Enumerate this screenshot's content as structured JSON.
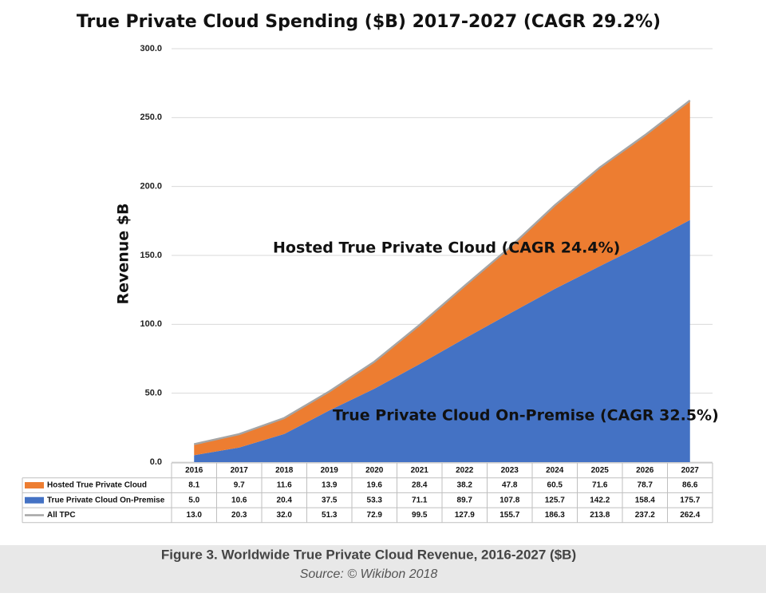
{
  "chart_data": {
    "type": "stacked_area",
    "title": "True Private Cloud Spending ($B) 2017-2027 (CAGR 29.2%)",
    "y_label": "Revenue $B",
    "annotations": [
      "Hosted True Private Cloud (CAGR 24.4%)",
      "True Private Cloud On-Premise (CAGR 32.5%)"
    ],
    "categories": [
      "2016",
      "2017",
      "2018",
      "2019",
      "2020",
      "2021",
      "2022",
      "2023",
      "2024",
      "2025",
      "2026",
      "2027"
    ],
    "series": [
      {
        "name": "Hosted True Private Cloud",
        "color": "#ed7d31",
        "stack": true,
        "values": [
          8.1,
          9.7,
          11.6,
          13.9,
          19.6,
          28.4,
          38.2,
          47.8,
          60.5,
          71.6,
          78.7,
          86.6
        ],
        "value_labels": [
          "8.1",
          "9.7",
          "11.6",
          "13.9",
          "19.6",
          "28.4",
          "38.2",
          "47.8",
          "60.5",
          "71.6",
          "78.7",
          "86.6"
        ]
      },
      {
        "name": "True Private Cloud On-Premise",
        "color": "#4472c4",
        "stack": true,
        "values": [
          5.0,
          10.6,
          20.4,
          37.5,
          53.3,
          71.1,
          89.7,
          107.8,
          125.7,
          142.2,
          158.4,
          175.7
        ],
        "value_labels": [
          "5.0",
          "10.6",
          "20.4",
          "37.5",
          "53.3",
          "71.1",
          "89.7",
          "107.8",
          "125.7",
          "142.2",
          "158.4",
          "175.7"
        ]
      },
      {
        "name": "All TPC",
        "color": "#a5a5a5",
        "stack": false,
        "values": [
          13.0,
          20.3,
          32.0,
          51.3,
          72.9,
          99.5,
          127.9,
          155.7,
          186.3,
          213.8,
          237.2,
          262.4
        ],
        "value_labels": [
          "13.0",
          "20.3",
          "32.0",
          "51.3",
          "72.9",
          "99.5",
          "127.9",
          "155.7",
          "186.3",
          "213.8",
          "237.2",
          "262.4"
        ]
      }
    ],
    "ylim": [
      0,
      300
    ],
    "yticks": [
      {
        "value": 0,
        "label": "0.0"
      },
      {
        "value": 50,
        "label": "50.0"
      },
      {
        "value": 100,
        "label": "100.0"
      },
      {
        "value": 150,
        "label": "150.0"
      },
      {
        "value": 200,
        "label": "200.0"
      },
      {
        "value": 250,
        "label": "250.0"
      },
      {
        "value": 300,
        "label": "300.0"
      }
    ],
    "grid": true
  },
  "figure": {
    "caption": "Figure 3. Worldwide True Private Cloud Revenue, 2016-2027 ($B)",
    "source": "Source: © Wikibon 2018"
  }
}
